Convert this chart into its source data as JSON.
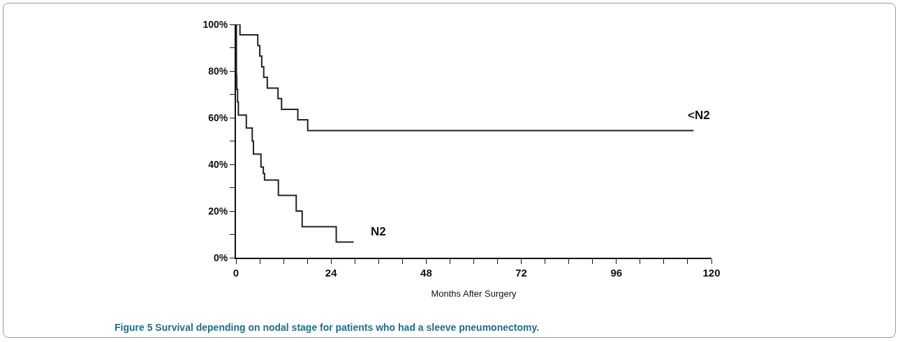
{
  "chart_data": {
    "type": "step",
    "xlabel": "Months After Surgery",
    "annotations": [
      "Figure 5 Survival depending on nodal stage for patients who had a sleeve pneumonectomy."
    ],
    "series": [
      {
        "name": "<N2",
        "color": "#222222",
        "x": [
          0,
          1,
          5.5,
          6,
          6.5,
          7,
          7.9,
          10.6,
          11.5,
          15.6,
          18.1,
          115.5
        ],
        "values": [
          100,
          95.5,
          90.9,
          86.4,
          81.8,
          77.3,
          72.7,
          68.2,
          63.6,
          59.1,
          54.5,
          54.5
        ]
      },
      {
        "name": "N2",
        "color": "#222222",
        "x": [
          0,
          0.1,
          0.2,
          0.4,
          0.6,
          2.6,
          4.1,
          4.4,
          6.3,
          6.9,
          7.2,
          10.7,
          15.2,
          16.7,
          25.3,
          29.7
        ],
        "values": [
          100,
          77.8,
          72.2,
          66.7,
          61.1,
          55.6,
          50,
          44.4,
          38.9,
          36.1,
          33.3,
          26.7,
          20,
          13.3,
          6.7,
          6.7
        ]
      }
    ],
    "xlim": [
      0,
      120
    ],
    "xticks": [
      0,
      {
        "value": 6,
        "label": null
      },
      {
        "value": 12,
        "label": null
      },
      {
        "value": 18,
        "label": null
      },
      24,
      {
        "value": 30,
        "label": null
      },
      {
        "value": 36,
        "label": null
      },
      {
        "value": 42,
        "label": null
      },
      48,
      {
        "value": 54,
        "label": null
      },
      {
        "value": 60,
        "label": null
      },
      {
        "value": 66,
        "label": null
      },
      72,
      {
        "value": 78,
        "label": null
      },
      {
        "value": 84,
        "label": null
      },
      {
        "value": 90,
        "label": null
      },
      96,
      {
        "value": 102,
        "label": null
      },
      {
        "value": 108,
        "label": null
      },
      {
        "value": 114,
        "label": null
      },
      120
    ],
    "ylim": [
      0,
      100
    ],
    "yticks": [
      {
        "value": 0,
        "label": "0%"
      },
      {
        "value": 10,
        "label": null
      },
      {
        "value": 20,
        "label": "20%"
      },
      {
        "value": 30,
        "label": null
      },
      {
        "value": 40,
        "label": "40%"
      },
      {
        "value": 50,
        "label": null
      },
      {
        "value": 60,
        "label": "60%"
      },
      {
        "value": 70,
        "label": null
      },
      {
        "value": 80,
        "label": "80%"
      },
      {
        "value": 90,
        "label": null
      },
      {
        "value": 100,
        "label": "100%"
      }
    ],
    "grid": false,
    "legend": false,
    "marker": "none",
    "line_style": "solid"
  }
}
